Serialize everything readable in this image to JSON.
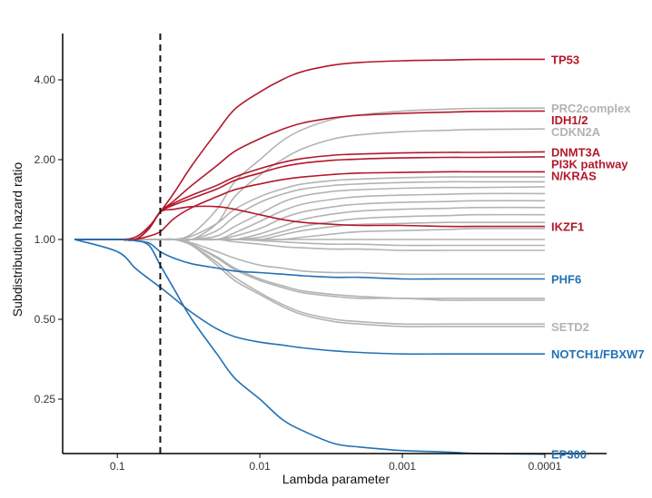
{
  "chart_data": {
    "type": "line",
    "title": "",
    "xlabel": "Lambda parameter",
    "ylabel": "Subdistribution hazard ratio",
    "x_scale": "log-reversed",
    "y_scale": "log",
    "xlim": [
      0.2,
      5e-05
    ],
    "ylim": [
      0.14,
      6.0
    ],
    "x_ticks": [
      {
        "value": 0.1,
        "label": "0.1"
      },
      {
        "value": 0.01,
        "label": "0.01"
      },
      {
        "value": 0.001,
        "label": "0.001"
      },
      {
        "value": 0.0001,
        "label": "0.0001"
      }
    ],
    "y_ticks": [
      {
        "value": 0.25,
        "label": "0.25"
      },
      {
        "value": 0.5,
        "label": "0.50"
      },
      {
        "value": 1.0,
        "label": "1.00"
      },
      {
        "value": 2.0,
        "label": "2.00"
      },
      {
        "value": 4.0,
        "label": "4.00"
      }
    ],
    "reference_line": {
      "x": 0.05,
      "style": "dashed"
    },
    "grid": false,
    "colors": {
      "risk": "#b2182b",
      "protective": "#2171b5",
      "neutral": "#b3b3b3",
      "reference": "#111111"
    },
    "x_grid_values": [
      0.2,
      0.1,
      0.075,
      0.06,
      0.05,
      0.04,
      0.03,
      0.02,
      0.015,
      0.01,
      0.007,
      0.005,
      0.003,
      0.002,
      0.001,
      0.0005,
      0.0003,
      0.0001
    ],
    "series": [
      {
        "name": "TP53",
        "group": "risk",
        "labeled": true,
        "values": [
          1,
          1,
          1.02,
          1.12,
          1.27,
          1.5,
          1.9,
          2.55,
          3.1,
          3.6,
          4.0,
          4.3,
          4.55,
          4.65,
          4.72,
          4.75,
          4.77,
          4.78
        ]
      },
      {
        "name": "PRC2complex",
        "group": "neutral",
        "labeled": true,
        "values": [
          1,
          1,
          1,
          1,
          1,
          1,
          1.05,
          1.3,
          1.65,
          2.0,
          2.35,
          2.6,
          2.85,
          2.95,
          3.05,
          3.1,
          3.12,
          3.13
        ]
      },
      {
        "name": "IDH1/2",
        "group": "risk",
        "labeled": true,
        "values": [
          1,
          1,
          1,
          1.1,
          1.27,
          1.4,
          1.6,
          1.9,
          2.15,
          2.4,
          2.6,
          2.75,
          2.88,
          2.94,
          2.99,
          3.02,
          3.04,
          3.05
        ]
      },
      {
        "name": "CDKN2A",
        "group": "neutral",
        "labeled": true,
        "values": [
          1,
          1,
          1,
          1,
          1,
          1,
          1,
          1.15,
          1.45,
          1.75,
          2.0,
          2.2,
          2.4,
          2.48,
          2.55,
          2.58,
          2.6,
          2.61
        ]
      },
      {
        "name": "DNMT3A",
        "group": "risk",
        "labeled": true,
        "values": [
          1,
          1,
          1,
          1.1,
          1.27,
          1.37,
          1.47,
          1.6,
          1.72,
          1.85,
          1.95,
          2.02,
          2.08,
          2.1,
          2.12,
          2.13,
          2.13,
          2.14
        ]
      },
      {
        "name": "PI3K pathway",
        "group": "risk",
        "labeled": true,
        "values": [
          1,
          1,
          1,
          1.1,
          1.27,
          1.35,
          1.43,
          1.55,
          1.67,
          1.78,
          1.88,
          1.94,
          1.99,
          2.01,
          2.03,
          2.04,
          2.04,
          2.05
        ]
      },
      {
        "name": "N/KRAS",
        "group": "risk",
        "labeled": true,
        "values": [
          1,
          1,
          1,
          1.03,
          1.07,
          1.2,
          1.32,
          1.45,
          1.54,
          1.62,
          1.68,
          1.72,
          1.76,
          1.78,
          1.79,
          1.8,
          1.8,
          1.8
        ]
      },
      {
        "name": "IKZF1",
        "group": "risk",
        "labeled": true,
        "values": [
          1,
          1,
          1,
          1.1,
          1.27,
          1.3,
          1.33,
          1.33,
          1.3,
          1.24,
          1.19,
          1.16,
          1.14,
          1.13,
          1.13,
          1.12,
          1.12,
          1.12
        ]
      },
      {
        "name": "PHF6",
        "group": "protective",
        "labeled": true,
        "values": [
          1,
          1,
          0.99,
          0.97,
          0.9,
          0.85,
          0.81,
          0.78,
          0.76,
          0.75,
          0.74,
          0.73,
          0.72,
          0.72,
          0.71,
          0.71,
          0.71,
          0.71
        ]
      },
      {
        "name": "SETD2",
        "group": "neutral",
        "labeled": true,
        "values": [
          1,
          1,
          1,
          1,
          1,
          1,
          0.95,
          0.8,
          0.7,
          0.62,
          0.56,
          0.52,
          0.49,
          0.48,
          0.47,
          0.47,
          0.47,
          0.47
        ]
      },
      {
        "name": "NOTCH1/FBXW7",
        "group": "protective",
        "labeled": true,
        "values": [
          1,
          0.9,
          0.78,
          0.71,
          0.66,
          0.6,
          0.53,
          0.46,
          0.43,
          0.41,
          0.4,
          0.39,
          0.38,
          0.375,
          0.37,
          0.37,
          0.37,
          0.37
        ]
      },
      {
        "name": "EP300",
        "group": "protective",
        "labeled": true,
        "values": [
          1,
          1,
          0.99,
          0.95,
          0.8,
          0.65,
          0.5,
          0.37,
          0.3,
          0.25,
          0.21,
          0.19,
          0.17,
          0.165,
          0.16,
          0.158,
          0.156,
          0.155
        ]
      },
      {
        "name": "",
        "group": "neutral",
        "labeled": false,
        "values": [
          1,
          1,
          1,
          1,
          1,
          1,
          1.03,
          1.15,
          1.3,
          1.45,
          1.55,
          1.62,
          1.67,
          1.69,
          1.71,
          1.72,
          1.72,
          1.72
        ]
      },
      {
        "name": "",
        "group": "neutral",
        "labeled": false,
        "values": [
          1,
          1,
          1,
          1,
          1,
          1,
          1,
          1.08,
          1.22,
          1.38,
          1.48,
          1.55,
          1.6,
          1.62,
          1.64,
          1.65,
          1.65,
          1.65
        ]
      },
      {
        "name": "",
        "group": "neutral",
        "labeled": false,
        "values": [
          1,
          1,
          1,
          1,
          1,
          1,
          1,
          1.03,
          1.12,
          1.25,
          1.38,
          1.46,
          1.52,
          1.54,
          1.56,
          1.57,
          1.57,
          1.58
        ]
      },
      {
        "name": "",
        "group": "neutral",
        "labeled": false,
        "values": [
          1,
          1,
          1,
          1,
          1,
          1,
          1,
          1,
          1.06,
          1.17,
          1.28,
          1.36,
          1.42,
          1.45,
          1.47,
          1.48,
          1.49,
          1.49
        ]
      },
      {
        "name": "",
        "group": "neutral",
        "labeled": false,
        "values": [
          1,
          1,
          1,
          1,
          1,
          1,
          1,
          1,
          1.03,
          1.1,
          1.2,
          1.27,
          1.33,
          1.36,
          1.38,
          1.39,
          1.4,
          1.4
        ]
      },
      {
        "name": "",
        "group": "neutral",
        "labeled": false,
        "values": [
          1,
          1,
          1,
          1,
          1,
          1,
          1,
          1,
          1,
          1.05,
          1.12,
          1.19,
          1.25,
          1.28,
          1.3,
          1.31,
          1.32,
          1.32
        ]
      },
      {
        "name": "",
        "group": "neutral",
        "labeled": false,
        "values": [
          1,
          1,
          1,
          1,
          1,
          1,
          1,
          1,
          1,
          1.02,
          1.07,
          1.12,
          1.17,
          1.2,
          1.22,
          1.23,
          1.24,
          1.24
        ]
      },
      {
        "name": "",
        "group": "neutral",
        "labeled": false,
        "values": [
          1,
          1,
          1,
          1,
          1,
          1,
          1,
          1,
          1,
          1,
          1.04,
          1.08,
          1.12,
          1.14,
          1.15,
          1.16,
          1.16,
          1.16
        ]
      },
      {
        "name": "",
        "group": "neutral",
        "labeled": false,
        "values": [
          1,
          1,
          1,
          1,
          1,
          1,
          1,
          1,
          1,
          1,
          1,
          1.02,
          1.05,
          1.07,
          1.08,
          1.09,
          1.1,
          1.1
        ]
      },
      {
        "name": "",
        "group": "neutral",
        "labeled": false,
        "values": [
          1,
          1,
          1,
          1,
          1,
          1,
          1,
          1,
          1,
          1,
          1,
          1,
          1,
          1,
          1,
          1,
          1,
          1
        ]
      },
      {
        "name": "",
        "group": "neutral",
        "labeled": false,
        "values": [
          1,
          1,
          1,
          1,
          1,
          1,
          1,
          1,
          1,
          0.99,
          0.98,
          0.97,
          0.96,
          0.96,
          0.95,
          0.95,
          0.95,
          0.95
        ]
      },
      {
        "name": "",
        "group": "neutral",
        "labeled": false,
        "values": [
          1,
          1,
          1,
          1,
          1,
          1,
          1,
          1,
          0.98,
          0.96,
          0.94,
          0.93,
          0.92,
          0.92,
          0.91,
          0.91,
          0.91,
          0.91
        ]
      },
      {
        "name": "",
        "group": "neutral",
        "labeled": false,
        "values": [
          1,
          1,
          1,
          1,
          1,
          1,
          0.97,
          0.9,
          0.85,
          0.8,
          0.78,
          0.76,
          0.75,
          0.75,
          0.74,
          0.74,
          0.74,
          0.74
        ]
      },
      {
        "name": "",
        "group": "neutral",
        "labeled": false,
        "values": [
          1,
          1,
          1,
          1,
          1,
          1,
          0.96,
          0.85,
          0.77,
          0.7,
          0.66,
          0.63,
          0.61,
          0.6,
          0.6,
          0.59,
          0.59,
          0.59
        ]
      },
      {
        "name": "",
        "group": "neutral",
        "labeled": false,
        "values": [
          1,
          1,
          1,
          1,
          1,
          1,
          0.96,
          0.86,
          0.78,
          0.71,
          0.67,
          0.64,
          0.62,
          0.61,
          0.6,
          0.6,
          0.6,
          0.6
        ]
      },
      {
        "name": "",
        "group": "neutral",
        "labeled": false,
        "values": [
          1,
          1,
          1,
          1,
          1,
          1,
          0.95,
          0.82,
          0.72,
          0.63,
          0.57,
          0.53,
          0.5,
          0.49,
          0.48,
          0.48,
          0.48,
          0.48
        ]
      }
    ]
  }
}
